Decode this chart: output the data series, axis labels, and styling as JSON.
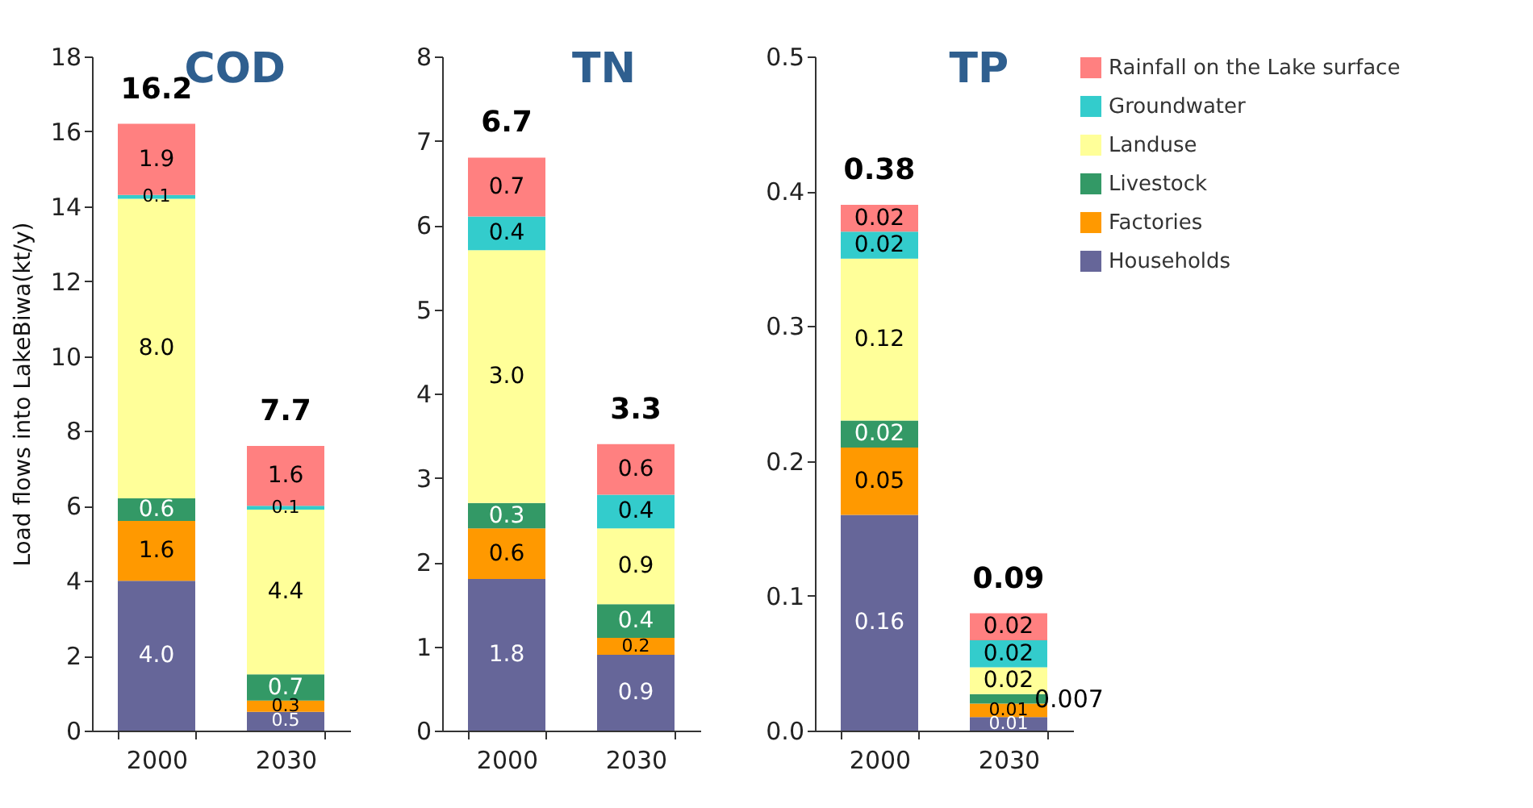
{
  "chart_data": [
    {
      "type": "bar",
      "stacked": true,
      "title": "COD",
      "ylabel": "Load flows into LakeBiwa(kt/y)",
      "categories": [
        "2000",
        "2030"
      ],
      "ylim": [
        0,
        18
      ],
      "yticks": [
        0,
        2,
        4,
        6,
        8,
        10,
        12,
        14,
        16,
        18
      ],
      "legend": false,
      "totals": [
        "16.2",
        "7.7"
      ],
      "series": [
        {
          "color": "#666699",
          "values": [
            4.0,
            0.5
          ],
          "value_labels": [
            "4.0",
            "0.5"
          ]
        },
        {
          "color": "#ff9900",
          "values": [
            1.6,
            0.3
          ],
          "value_labels": [
            "1.6",
            "0.3"
          ]
        },
        {
          "color": "#339966",
          "values": [
            0.6,
            0.7
          ],
          "value_labels": [
            "0.6",
            "0.7"
          ]
        },
        {
          "color": "#ffff99",
          "values": [
            8.0,
            4.4
          ],
          "value_labels": [
            "8.0",
            "4.4"
          ]
        },
        {
          "color": "#33cccc",
          "values": [
            0.1,
            0.1
          ],
          "value_labels": [
            "0.1",
            "0.1"
          ]
        },
        {
          "color": "#ff8080",
          "values": [
            1.9,
            1.6
          ],
          "value_labels": [
            "1.9",
            "1.6"
          ]
        }
      ]
    },
    {
      "type": "bar",
      "stacked": true,
      "title": "TN",
      "categories": [
        "2000",
        "2030"
      ],
      "ylim": [
        0,
        8
      ],
      "yticks": [
        0,
        1,
        2,
        3,
        4,
        5,
        6,
        7,
        8
      ],
      "legend": false,
      "totals": [
        "6.7",
        "3.3"
      ],
      "series": [
        {
          "color": "#666699",
          "values": [
            1.8,
            0.9
          ],
          "value_labels": [
            "1.8",
            "0.9"
          ]
        },
        {
          "color": "#ff9900",
          "values": [
            0.6,
            0.2
          ],
          "value_labels": [
            "0.6",
            "0.2"
          ]
        },
        {
          "color": "#339966",
          "values": [
            0.3,
            0.4
          ],
          "value_labels": [
            "0.3",
            "0.4"
          ]
        },
        {
          "color": "#ffff99",
          "values": [
            3.0,
            0.9
          ],
          "value_labels": [
            "3.0",
            "0.9"
          ]
        },
        {
          "color": "#33cccc",
          "values": [
            0.4,
            0.4
          ],
          "value_labels": [
            "0.4",
            "0.4"
          ]
        },
        {
          "color": "#ff8080",
          "values": [
            0.7,
            0.6
          ],
          "value_labels": [
            "0.7",
            "0.6"
          ]
        }
      ]
    },
    {
      "type": "bar",
      "stacked": true,
      "title": "TP",
      "categories": [
        "2000",
        "2030"
      ],
      "ylim": [
        0,
        0.5
      ],
      "yticks": [
        {
          "value": 0,
          "label": "0.0"
        },
        0.1,
        0.2,
        0.3,
        0.4,
        0.5
      ],
      "legend": "top right",
      "totals": [
        "0.38",
        "0.09"
      ],
      "series": [
        {
          "name": "Households",
          "color": "#666699",
          "values": [
            0.16,
            0.01
          ],
          "value_labels": [
            "0.16",
            "0.01"
          ]
        },
        {
          "name": "Factories",
          "color": "#ff9900",
          "values": [
            0.05,
            0.01
          ],
          "value_labels": [
            "0.05",
            "0.01"
          ]
        },
        {
          "name": "Livestock",
          "color": "#339966",
          "values": [
            0.02,
            0.007
          ],
          "value_labels": [
            "0.02",
            "0.007"
          ]
        },
        {
          "name": "Landuse",
          "color": "#ffff99",
          "values": [
            0.12,
            0.02
          ],
          "value_labels": [
            "0.12",
            "0.02"
          ]
        },
        {
          "name": "Groundwater",
          "color": "#33cccc",
          "values": [
            0.02,
            0.02
          ],
          "value_labels": [
            "0.02",
            "0.02"
          ]
        },
        {
          "name": "Rainfall on the Lake surface",
          "color": "#ff8080",
          "values": [
            0.02,
            0.02
          ],
          "value_labels": [
            "0.02",
            "0.02"
          ]
        }
      ]
    }
  ]
}
